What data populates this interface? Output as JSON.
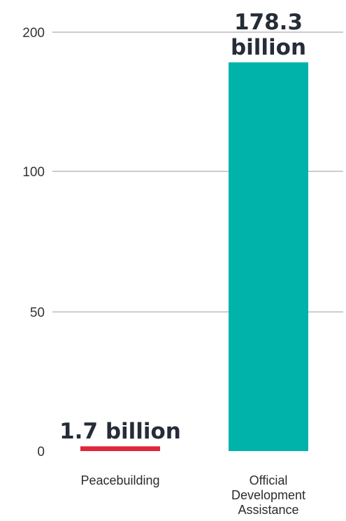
{
  "chart_data": {
    "type": "bar",
    "title": "",
    "xlabel": "",
    "ylabel": "",
    "y_ticks": [
      {
        "value": 200,
        "label": "200"
      },
      {
        "value": 100,
        "label": "100"
      },
      {
        "value": 50,
        "label": "50"
      },
      {
        "value": 0,
        "label": "0"
      }
    ],
    "bars": [
      {
        "category_lines": [
          "Peacebuilding"
        ],
        "value": 1.7,
        "data_label_lines": [
          "1.7 billion"
        ],
        "color": "#e0263a"
      },
      {
        "category_lines": [
          "Official",
          "Development",
          "Assistance"
        ],
        "value": 178.3,
        "data_label_lines": [
          "178.3",
          "billion"
        ],
        "color": "#00b3aa"
      }
    ],
    "grid": true,
    "legend": "none"
  }
}
